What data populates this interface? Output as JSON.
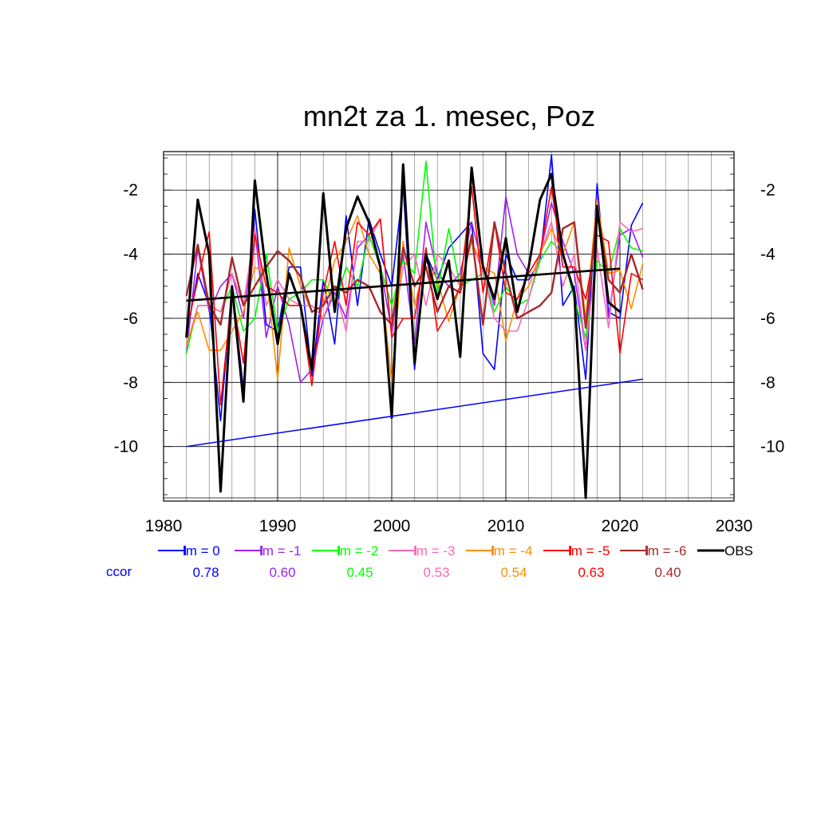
{
  "chart_data": {
    "type": "line",
    "title": "mn2t za 1. mesec, Poz",
    "xlabel": "",
    "ylabel": "",
    "xlim": [
      1980,
      2030
    ],
    "ylim": [
      -11.7,
      -0.8
    ],
    "xticks": [
      1980,
      1990,
      2000,
      2010,
      2020,
      2030
    ],
    "yticks": [
      -2,
      -4,
      -6,
      -8,
      -10
    ],
    "grid": true,
    "x": [
      1982,
      1983,
      1984,
      1985,
      1986,
      1987,
      1988,
      1989,
      1990,
      1991,
      1992,
      1993,
      1994,
      1995,
      1996,
      1997,
      1998,
      1999,
      2000,
      2001,
      2002,
      2003,
      2004,
      2005,
      2006,
      2007,
      2008,
      2009,
      2010,
      2011,
      2012,
      2013,
      2014,
      2015,
      2016,
      2017,
      2018,
      2019,
      2020,
      2021,
      2022
    ],
    "series": [
      {
        "name": "lm = 0",
        "color": "#0000ff",
        "values": [
          -6.6,
          -4.6,
          -5.6,
          -9.2,
          -5.0,
          -8.2,
          -2.6,
          -6.2,
          -6.4,
          -4.4,
          -4.4,
          -7.8,
          -4.8,
          -6.8,
          -2.8,
          -5.6,
          -2.9,
          -4.0,
          -5.0,
          -1.9,
          -7.6,
          -4.0,
          -4.8,
          -3.8,
          -3.4,
          -3.0,
          -7.1,
          -7.6,
          -4.0,
          -4.8,
          -4.8,
          -4.2,
          -0.9,
          -5.6,
          -5.0,
          -7.9,
          -1.8,
          -5.8,
          -6.0,
          -3.1,
          -2.4
        ]
      },
      {
        "name": "lm = -1",
        "color": "#a020f0",
        "values": [
          -7.1,
          -3.8,
          -5.8,
          -5.0,
          -4.6,
          -6.0,
          -3.2,
          -6.6,
          -5.0,
          -6.2,
          -8.0,
          -7.6,
          -6.0,
          -5.2,
          -6.0,
          -3.8,
          -3.4,
          -4.4,
          -6.4,
          -4.0,
          -6.8,
          -3.0,
          -4.6,
          -5.0,
          -4.6,
          -3.0,
          -4.4,
          -5.6,
          -2.2,
          -4.0,
          -4.6,
          -4.0,
          -2.4,
          -3.6,
          -4.6,
          -7.0,
          -2.2,
          -6.0,
          -3.4,
          -3.2,
          -4.1
        ]
      },
      {
        "name": "lm = -2",
        "color": "#00ff00",
        "values": [
          -7.1,
          -5.6,
          -5.6,
          -5.8,
          -5.0,
          -6.4,
          -6.0,
          -4.0,
          -6.4,
          -5.4,
          -5.2,
          -4.8,
          -4.8,
          -5.6,
          -4.4,
          -5.0,
          -3.4,
          -4.4,
          -5.6,
          -4.2,
          -4.6,
          -1.1,
          -5.2,
          -3.2,
          -5.0,
          -4.8,
          -4.6,
          -5.8,
          -5.0,
          -5.6,
          -5.4,
          -4.2,
          -3.6,
          -4.0,
          -5.4,
          -6.6,
          -4.2,
          -4.6,
          -3.2,
          -3.8,
          -3.9
        ]
      },
      {
        "name": "lm = -3",
        "color": "#ff69b4",
        "values": [
          -6.9,
          -5.6,
          -5.6,
          -5.8,
          -4.6,
          -5.6,
          -3.2,
          -5.6,
          -4.8,
          -5.4,
          -5.6,
          -5.6,
          -6.0,
          -5.0,
          -6.4,
          -3.6,
          -3.6,
          -2.9,
          -6.6,
          -4.4,
          -4.0,
          -5.6,
          -4.0,
          -4.4,
          -5.0,
          -3.6,
          -4.6,
          -6.0,
          -6.4,
          -6.4,
          -5.4,
          -4.0,
          -3.0,
          -5.0,
          -4.0,
          -7.0,
          -3.8,
          -6.3,
          -3.0,
          -3.3,
          -3.2
        ]
      },
      {
        "name": "lm = -4",
        "color": "#ff8c00",
        "values": [
          -6.8,
          -5.8,
          -7.0,
          -7.0,
          -6.4,
          -5.8,
          -4.4,
          -4.6,
          -7.9,
          -3.8,
          -5.0,
          -5.8,
          -5.6,
          -4.2,
          -3.6,
          -2.8,
          -4.0,
          -4.6,
          -8.0,
          -3.6,
          -5.6,
          -4.2,
          -4.8,
          -6.1,
          -5.0,
          -3.6,
          -4.4,
          -4.6,
          -6.7,
          -5.4,
          -5.0,
          -4.0,
          -3.2,
          -4.0,
          -3.0,
          -6.0,
          -2.3,
          -4.6,
          -4.5,
          -5.7,
          -4.3
        ]
      },
      {
        "name": "lm = -5",
        "color": "#ff0000",
        "values": [
          -6.4,
          -4.8,
          -3.3,
          -8.7,
          -5.2,
          -7.4,
          -3.4,
          -5.0,
          -5.2,
          -5.6,
          -5.6,
          -8.1,
          -5.2,
          -3.6,
          -5.6,
          -3.0,
          -3.4,
          -2.9,
          -6.6,
          -6.0,
          -6.0,
          -3.8,
          -6.4,
          -5.8,
          -5.0,
          -1.9,
          -5.2,
          -3.0,
          -5.2,
          -5.4,
          -4.6,
          -4.0,
          -1.9,
          -4.4,
          -4.4,
          -5.4,
          -3.4,
          -3.6,
          -7.1,
          -4.6,
          -4.8
        ]
      },
      {
        "name": "lm = -6",
        "color": "#a52a2a",
        "values": [
          -5.3,
          -3.7,
          -5.6,
          -6.2,
          -4.1,
          -5.6,
          -5.0,
          -4.4,
          -3.9,
          -4.2,
          -4.7,
          -5.8,
          -5.6,
          -5.0,
          -5.2,
          -4.8,
          -5.0,
          -5.8,
          -6.2,
          -3.8,
          -5.0,
          -4.4,
          -5.8,
          -5.0,
          -5.2,
          -3.4,
          -6.2,
          -3.0,
          -4.6,
          -6.0,
          -5.8,
          -5.6,
          -5.2,
          -3.2,
          -3.0,
          -6.3,
          -2.6,
          -4.8,
          -5.2,
          -4.0,
          -5.1
        ]
      },
      {
        "name": "OBS",
        "color": "#000000",
        "values": [
          -6.6,
          -2.3,
          -4.0,
          -11.4,
          -5.0,
          -8.6,
          -1.7,
          -4.6,
          -6.8,
          -4.6,
          -5.6,
          -7.6,
          -2.1,
          -5.8,
          -3.2,
          -2.2,
          -3.0,
          -4.4,
          -9.1,
          -1.2,
          -7.4,
          -4.0,
          -5.4,
          -4.2,
          -7.2,
          -1.3,
          -4.4,
          -5.4,
          -3.5,
          -5.8,
          -4.4,
          -2.3,
          -1.5,
          -4.0,
          -5.2,
          -11.6,
          -2.5,
          -5.5,
          -5.8,
          null,
          null
        ]
      }
    ],
    "trends": [
      {
        "name": "OBS trend",
        "color": "#000000",
        "x": [
          1982,
          2020
        ],
        "y": [
          -5.45,
          -4.45
        ]
      },
      {
        "name": "lm = 0 trend",
        "color": "#0000ff",
        "x": [
          1982,
          2022
        ],
        "y": [
          -10.0,
          -7.9
        ]
      }
    ],
    "legend": {
      "placement": "bottom",
      "ccor_label": "ccor",
      "ccor_values": [
        "0.78",
        "0.60",
        "0.45",
        "0.53",
        "0.54",
        "0.63",
        "0.40"
      ]
    }
  }
}
